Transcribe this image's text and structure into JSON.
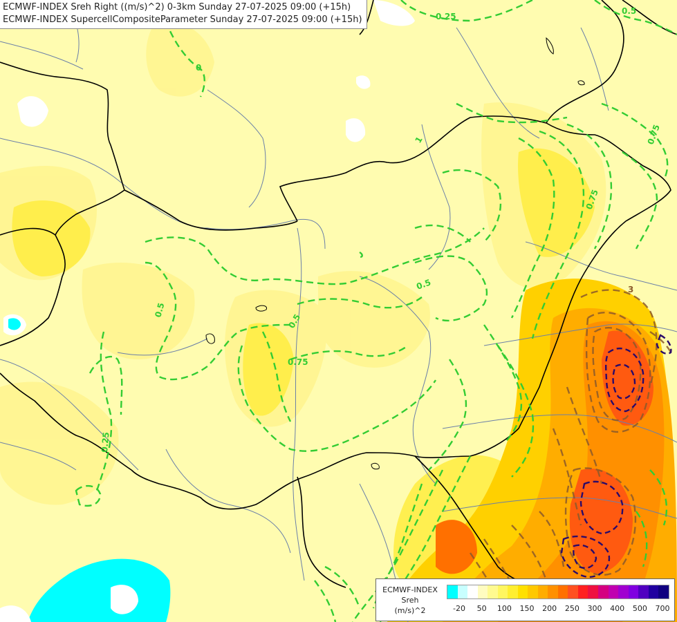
{
  "titles": {
    "line1": "ECMWF-INDEX Sreh Right ((m/s)^2) 0-3km Sunday 27-07-2025 09:00 (+15h)",
    "line2": "ECMWF-INDEX SupercellCompositeParameter Sunday 27-07-2025 09:00 (+15h)"
  },
  "legend": {
    "title_line1": "ECMWF-INDEX",
    "title_line2": "Sreh",
    "title_line3": "(m/s)^2",
    "colors": [
      "#00ffff",
      "#c8ffff",
      "#ffffff",
      "#fffcc0",
      "#fffa90",
      "#fff660",
      "#ffee30",
      "#ffe000",
      "#ffc800",
      "#ffad00",
      "#ff9000",
      "#ff7000",
      "#ff5020",
      "#ff2020",
      "#ee1040",
      "#d40080",
      "#c000b0",
      "#a000d0",
      "#8000e0",
      "#5000c0",
      "#2000a0",
      "#100080"
    ],
    "ticks": [
      "-20",
      "50",
      "100",
      "150",
      "200",
      "250",
      "300",
      "400",
      "500",
      "700"
    ]
  },
  "contour_labels": {
    "scp_025_top": "0.25",
    "scp_05_top": "0.5",
    "scp_05_left": "0.5",
    "scp_05_mid": "0.5",
    "scp_05_east": "0.5",
    "scp_075_mid": "0.75",
    "scp_075_east": "0.75",
    "scp_075_ne": "0.75",
    "scp_025_left": "0.25",
    "scp_3_se": "3",
    "scp_1_ne": "1",
    "scp_0_sw": "0"
  },
  "colors": {
    "background": "#fffcb0",
    "scp_contour": "#33cc33",
    "scp_high_contour": "#8b5a2b",
    "scp_extreme_contour": "#2a0a6a",
    "border": "#000000",
    "river": "#6a7fa8"
  }
}
